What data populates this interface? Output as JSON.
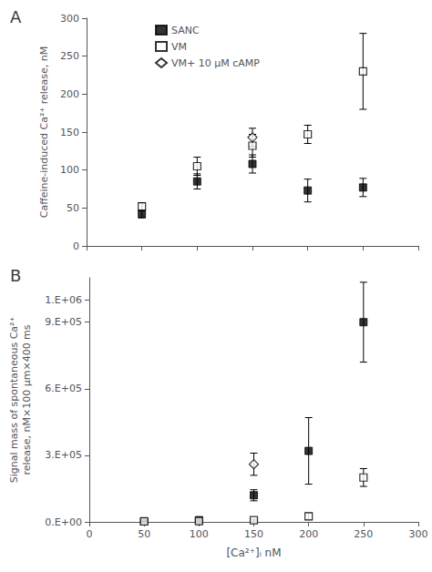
{
  "chart_data": [
    {
      "type": "scatter",
      "title": "A",
      "ylabel": "Caffeine-induced Ca²⁺ release, nM",
      "xlim": [
        0,
        300
      ],
      "xticks": [
        0,
        50,
        100,
        150,
        200,
        250,
        300
      ],
      "ylim": [
        0,
        300
      ],
      "yticks": [
        0,
        50,
        100,
        150,
        200,
        250,
        300
      ],
      "tick_labels": "y",
      "grid": false,
      "legend": "upper left",
      "series": [
        {
          "name": "SANC",
          "color": "black",
          "marker": "square",
          "x": [
            50,
            100,
            150,
            200,
            250
          ],
          "values": [
            42,
            85,
            108,
            73,
            77
          ],
          "yerr": [
            5,
            10,
            12,
            15,
            12
          ]
        },
        {
          "name": "VM",
          "color": "black",
          "marker": "open square",
          "x": [
            50,
            100,
            150,
            200,
            250
          ],
          "values": [
            52,
            105,
            132,
            147,
            230
          ],
          "yerr": [
            5,
            12,
            15,
            12,
            50
          ]
        },
        {
          "name": "VM+ 10 μM cAMP",
          "color": "black",
          "marker": "open diamond",
          "x": [
            150
          ],
          "values": [
            143
          ],
          "yerr": [
            12
          ]
        }
      ]
    },
    {
      "type": "scatter",
      "title": "B",
      "xlabel": "[Ca²⁺]ᵢ nM",
      "ylabel": [
        "Signal mass of spontaneous Ca²⁺",
        "release, nM×100 μm×400 ms"
      ],
      "xlim": [
        0,
        300
      ],
      "xticks": [
        0,
        50,
        100,
        150,
        200,
        250,
        300
      ],
      "ylim": [
        0,
        1100000
      ],
      "yticks": [
        {
          "value": 0,
          "label": "0.E+00"
        },
        {
          "value": 300000,
          "label": "3.E+05"
        },
        {
          "value": 600000,
          "label": "6.E+05"
        },
        {
          "value": 900000,
          "label": "9.E+05"
        },
        {
          "value": 1000000,
          "label": "1.E+06"
        }
      ],
      "grid": false,
      "series": [
        {
          "name": "SANC",
          "color": "black",
          "marker": "square",
          "x": [
            50,
            100,
            150,
            200,
            250
          ],
          "values": [
            3000,
            8000,
            120000,
            320000,
            900000
          ],
          "yerr": [
            2000,
            4000,
            25000,
            150000,
            180000
          ]
        },
        {
          "name": "VM",
          "color": "black",
          "marker": "open square",
          "x": [
            50,
            100,
            150,
            200,
            250
          ],
          "values": [
            2000,
            4000,
            8000,
            25000,
            200000
          ],
          "yerr": [
            1000,
            2000,
            4000,
            15000,
            40000
          ]
        },
        {
          "name": "VM+ 10 μM cAMP",
          "color": "black",
          "marker": "open diamond",
          "x": [
            150
          ],
          "values": [
            260000
          ],
          "yerr": [
            50000
          ]
        }
      ]
    }
  ]
}
